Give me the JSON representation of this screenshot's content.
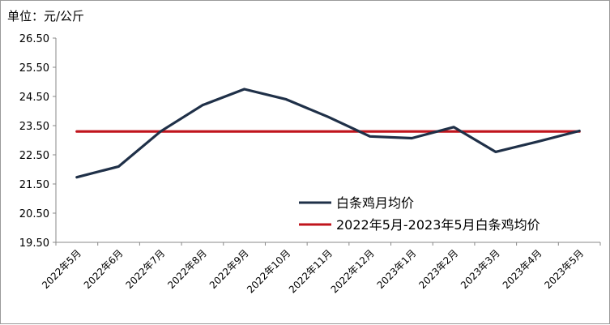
{
  "chart_data": {
    "type": "line",
    "ylabel": "单位：元/公斤",
    "categories": [
      "2022年5月",
      "2022年6月",
      "2022年7月",
      "2022年8月",
      "2022年9月",
      "2022年10月",
      "2022年11月",
      "2022年12月",
      "2023年1月",
      "2023年2月",
      "2023年3月",
      "2023年4月",
      "2023年5月"
    ],
    "y_ticks": [
      "26.50",
      "25.50",
      "24.50",
      "23.50",
      "22.50",
      "21.50",
      "20.50",
      "19.50"
    ],
    "ylim": [
      19.5,
      26.5
    ],
    "series": [
      {
        "name": "白条鸡月均价",
        "color": "#1f3048",
        "values": [
          21.73,
          22.1,
          23.3,
          24.2,
          24.75,
          24.4,
          23.8,
          23.13,
          23.07,
          23.45,
          22.6,
          22.95,
          23.32
        ]
      },
      {
        "name": "2022年5月-2023年5月白条鸡均价",
        "color": "#c0141c",
        "values": [
          23.3,
          23.3,
          23.3,
          23.3,
          23.3,
          23.3,
          23.3,
          23.3,
          23.3,
          23.3,
          23.3,
          23.3,
          23.3
        ]
      }
    ],
    "legend_position": "bottom-right",
    "grid": false
  }
}
